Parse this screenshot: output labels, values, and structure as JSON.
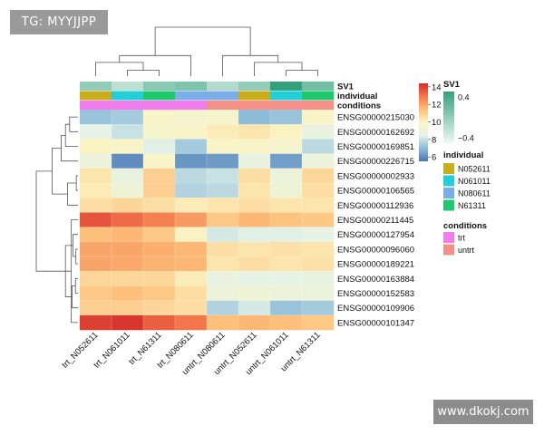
{
  "watermarks": {
    "top_left": "TG: MYYJJPP",
    "bottom_right": "www.dkokj.com"
  },
  "chart_data": {
    "type": "heatmap",
    "columns": [
      "trt_N052611",
      "trt_N061011",
      "trt_N61311",
      "trt_N080611",
      "untrt_N080611",
      "untrt_N052611",
      "untrt_N061011",
      "untrt_N61311"
    ],
    "rows": [
      "ENSG00000215030",
      "ENSG00000162692",
      "ENSG00000169851",
      "ENSG00000226715",
      "ENSG00000002933",
      "ENSG00000106565",
      "ENSG00000112936",
      "ENSG00000211445",
      "ENSG00000127954",
      "ENSG00000096060",
      "ENSG00000189221",
      "ENSG00000163884",
      "ENSG00000152583",
      "ENSG00000109906",
      "ENSG00000101347"
    ],
    "values": [
      [
        7.2,
        7.4,
        9.8,
        9.5,
        9.6,
        7.0,
        7.2,
        9.8
      ],
      [
        8.6,
        8.0,
        9.6,
        9.8,
        10.2,
        10.4,
        10.0,
        8.8
      ],
      [
        10.0,
        9.8,
        8.4,
        7.4,
        9.8,
        9.8,
        9.6,
        7.8
      ],
      [
        9.0,
        6.0,
        9.8,
        6.2,
        6.3,
        8.8,
        6.4,
        9.0
      ],
      [
        10.4,
        8.8,
        11.0,
        7.8,
        8.0,
        10.6,
        9.0,
        10.8
      ],
      [
        10.2,
        9.2,
        11.0,
        7.6,
        7.8,
        10.4,
        9.2,
        10.6
      ],
      [
        10.6,
        10.8,
        10.6,
        10.2,
        10.4,
        10.6,
        10.4,
        10.4
      ],
      [
        13.6,
        13.2,
        12.8,
        12.2,
        11.2,
        11.6,
        11.3,
        11.2
      ],
      [
        11.4,
        11.6,
        11.2,
        10.0,
        8.2,
        8.4,
        8.4,
        8.6
      ],
      [
        12.0,
        12.0,
        11.8,
        11.6,
        10.6,
        10.4,
        10.5,
        10.4
      ],
      [
        12.0,
        11.9,
        11.7,
        11.6,
        10.4,
        10.6,
        10.4,
        10.5
      ],
      [
        10.8,
        10.8,
        10.8,
        10.2,
        8.8,
        8.6,
        8.6,
        8.8
      ],
      [
        11.2,
        11.4,
        11.2,
        10.6,
        9.0,
        9.2,
        9.0,
        8.9
      ],
      [
        11.0,
        11.0,
        10.8,
        10.6,
        7.6,
        8.2,
        7.2,
        7.4
      ],
      [
        14.0,
        14.2,
        13.4,
        13.0,
        11.4,
        11.6,
        11.4,
        11.2
      ]
    ],
    "color_scale": {
      "min": 5.5,
      "max": 14.4,
      "stops": [
        "#4a74b4",
        "#8cbbd9",
        "#e4f2e6",
        "#fbf4c4",
        "#fdbf79",
        "#f37a4c",
        "#d42a2a"
      ],
      "legend_ticks": [
        6,
        8,
        10,
        12,
        14
      ]
    },
    "annotations": [
      {
        "label": "SV1",
        "type": "continuous",
        "values": [
          0.0,
          -0.2,
          0.05,
          0.1,
          -0.15,
          0.0,
          0.45,
          0.15
        ],
        "color_low": "#f1f9f7",
        "color_high": "#35a07c",
        "range": [
          -0.45,
          0.45
        ],
        "legend_ticks": [
          "0.4",
          "0",
          "−0.4"
        ]
      },
      {
        "label": "individual",
        "type": "categorical",
        "values": [
          "N052611",
          "N061011",
          "N61311",
          "N080611",
          "N080611",
          "N052611",
          "N061011",
          "N61311"
        ],
        "levels": [
          {
            "name": "N052611",
            "color": "#c8ae1c"
          },
          {
            "name": "N061011",
            "color": "#21cfd6"
          },
          {
            "name": "N080611",
            "color": "#79aee8"
          },
          {
            "name": "N61311",
            "color": "#1ec86c"
          }
        ]
      },
      {
        "label": "conditions",
        "type": "categorical",
        "values": [
          "trt",
          "trt",
          "trt",
          "trt",
          "untrt",
          "untrt",
          "untrt",
          "untrt"
        ],
        "levels": [
          {
            "name": "trt",
            "color": "#f27bed"
          },
          {
            "name": "untrt",
            "color": "#f58f87"
          }
        ]
      }
    ],
    "col_dendrogram": [
      [
        1,
        2,
        0.12
      ],
      [
        0,
        8,
        0.28
      ],
      [
        9,
        3,
        0.42
      ],
      [
        6,
        7,
        0.12
      ],
      [
        5,
        11,
        0.28
      ],
      [
        4,
        12,
        0.42
      ],
      [
        10,
        13,
        1.0
      ]
    ],
    "row_dendrogram": [
      [
        4,
        5,
        0.04
      ],
      [
        11,
        12,
        0.06
      ],
      [
        9,
        10,
        0.05
      ],
      [
        8,
        17,
        0.12
      ],
      [
        13,
        16,
        0.14
      ],
      [
        19,
        18,
        0.3
      ],
      [
        7,
        14,
        0.16
      ],
      [
        20,
        21,
        0.52
      ],
      [
        15,
        6,
        0.25
      ],
      [
        0,
        1,
        0.2
      ],
      [
        24,
        2,
        0.3
      ],
      [
        25,
        3,
        0.4
      ],
      [
        26,
        23,
        0.62
      ],
      [
        27,
        22,
        1.0
      ]
    ]
  }
}
